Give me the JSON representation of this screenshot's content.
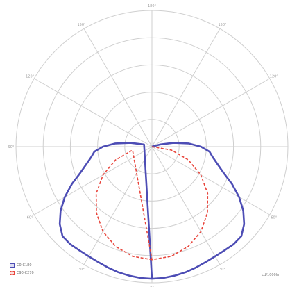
{
  "chart_data": {
    "type": "polar",
    "angle_labels": [
      "180°",
      "150°",
      "120°",
      "90°",
      "60°",
      "30°",
      "0°",
      "30°",
      "60°",
      "90°",
      "120°",
      "150°"
    ],
    "radial_max": 1.0,
    "rings": 5,
    "grid": true,
    "legend_position": "bottom-left",
    "unit_label": "cd/1000lm",
    "series": [
      {
        "name": "C0-C180",
        "color": "#4d4db5",
        "style": "solid",
        "points": [
          [
            0,
            0.97
          ],
          [
            5,
            0.968
          ],
          [
            10,
            0.962
          ],
          [
            15,
            0.955
          ],
          [
            20,
            0.945
          ],
          [
            25,
            0.935
          ],
          [
            30,
            0.93
          ],
          [
            35,
            0.93
          ],
          [
            40,
            0.935
          ],
          [
            45,
            0.93
          ],
          [
            50,
            0.885
          ],
          [
            55,
            0.82
          ],
          [
            60,
            0.74
          ],
          [
            65,
            0.65
          ],
          [
            70,
            0.56
          ],
          [
            75,
            0.5
          ],
          [
            80,
            0.455
          ],
          [
            85,
            0.425
          ],
          [
            90,
            0.36
          ],
          [
            95,
            0.27
          ],
          [
            100,
            0.16
          ],
          [
            105,
            0.06
          ],
          [
            110,
            0.0
          ]
        ]
      },
      {
        "name": "C90-C270",
        "color": "#e8453c",
        "style": "dashed",
        "points": [
          [
            0,
            0.83
          ],
          [
            10,
            0.818
          ],
          [
            20,
            0.78
          ],
          [
            30,
            0.72
          ],
          [
            40,
            0.635
          ],
          [
            50,
            0.535
          ],
          [
            60,
            0.415
          ],
          [
            70,
            0.285
          ],
          [
            80,
            0.145
          ],
          [
            90,
            0.0
          ]
        ]
      }
    ]
  }
}
